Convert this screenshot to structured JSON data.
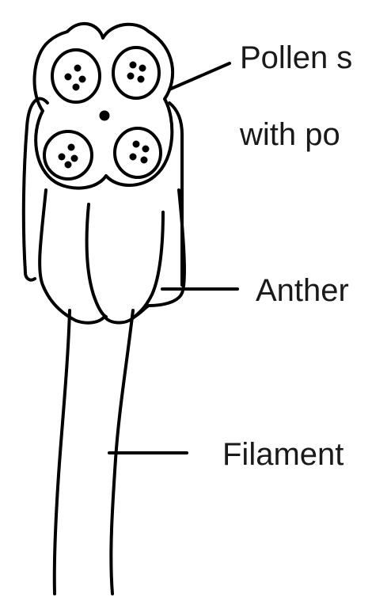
{
  "diagram": {
    "colors": {
      "stroke": "#000000",
      "background": "#ffffff",
      "text": "#1a1a1a"
    },
    "labels": {
      "pollen_line1": "Pollen s",
      "pollen_line2": "with po",
      "anther": "Anther",
      "filament": "Filament"
    }
  }
}
